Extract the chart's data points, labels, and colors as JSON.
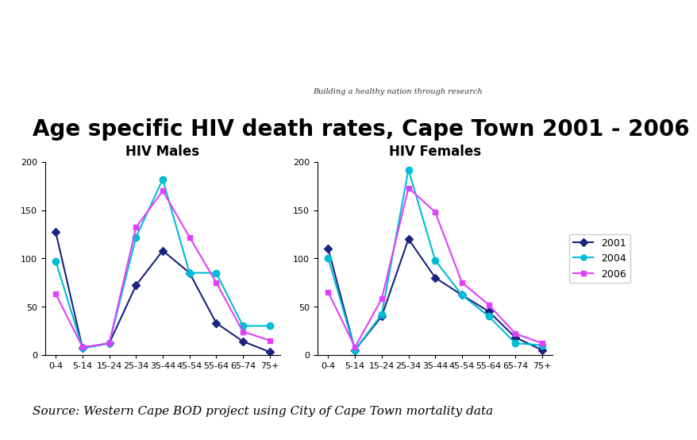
{
  "title": "Age specific HIV death rates, Cape Town 2001 - 2006",
  "source_text": "Source: Western Cape BOD project using City of Cape Town mortality data",
  "categories": [
    "0-4",
    "5-14",
    "15-24",
    "25-34",
    "35-44",
    "45-54",
    "55-64",
    "65-74",
    "75+"
  ],
  "males_title": "HIV Males",
  "females_title": "HIV Females",
  "males": {
    "2001": [
      127,
      7,
      12,
      72,
      108,
      85,
      33,
      14,
      3
    ],
    "2004": [
      97,
      7,
      12,
      122,
      182,
      85,
      85,
      30,
      30
    ],
    "2006": [
      63,
      8,
      12,
      132,
      170,
      122,
      75,
      24,
      15
    ]
  },
  "females": {
    "2001": [
      110,
      5,
      40,
      120,
      80,
      62,
      45,
      18,
      5
    ],
    "2004": [
      100,
      5,
      42,
      192,
      98,
      62,
      40,
      12,
      10
    ],
    "2006": [
      65,
      8,
      58,
      173,
      148,
      75,
      52,
      22,
      12
    ]
  },
  "ylim": [
    0,
    200
  ],
  "yticks": [
    0,
    50,
    100,
    150,
    200
  ],
  "colors": {
    "2001": "#1a237e",
    "2004": "#00bcd4",
    "2006": "#e040fb"
  },
  "legend_labels": [
    "2001",
    "2004",
    "2006"
  ],
  "header_bg": "#1e3a7a",
  "bg_color": "#ffffff",
  "title_fontsize": 20,
  "axis_title_fontsize": 12,
  "tick_fontsize": 8,
  "source_fontsize": 11
}
